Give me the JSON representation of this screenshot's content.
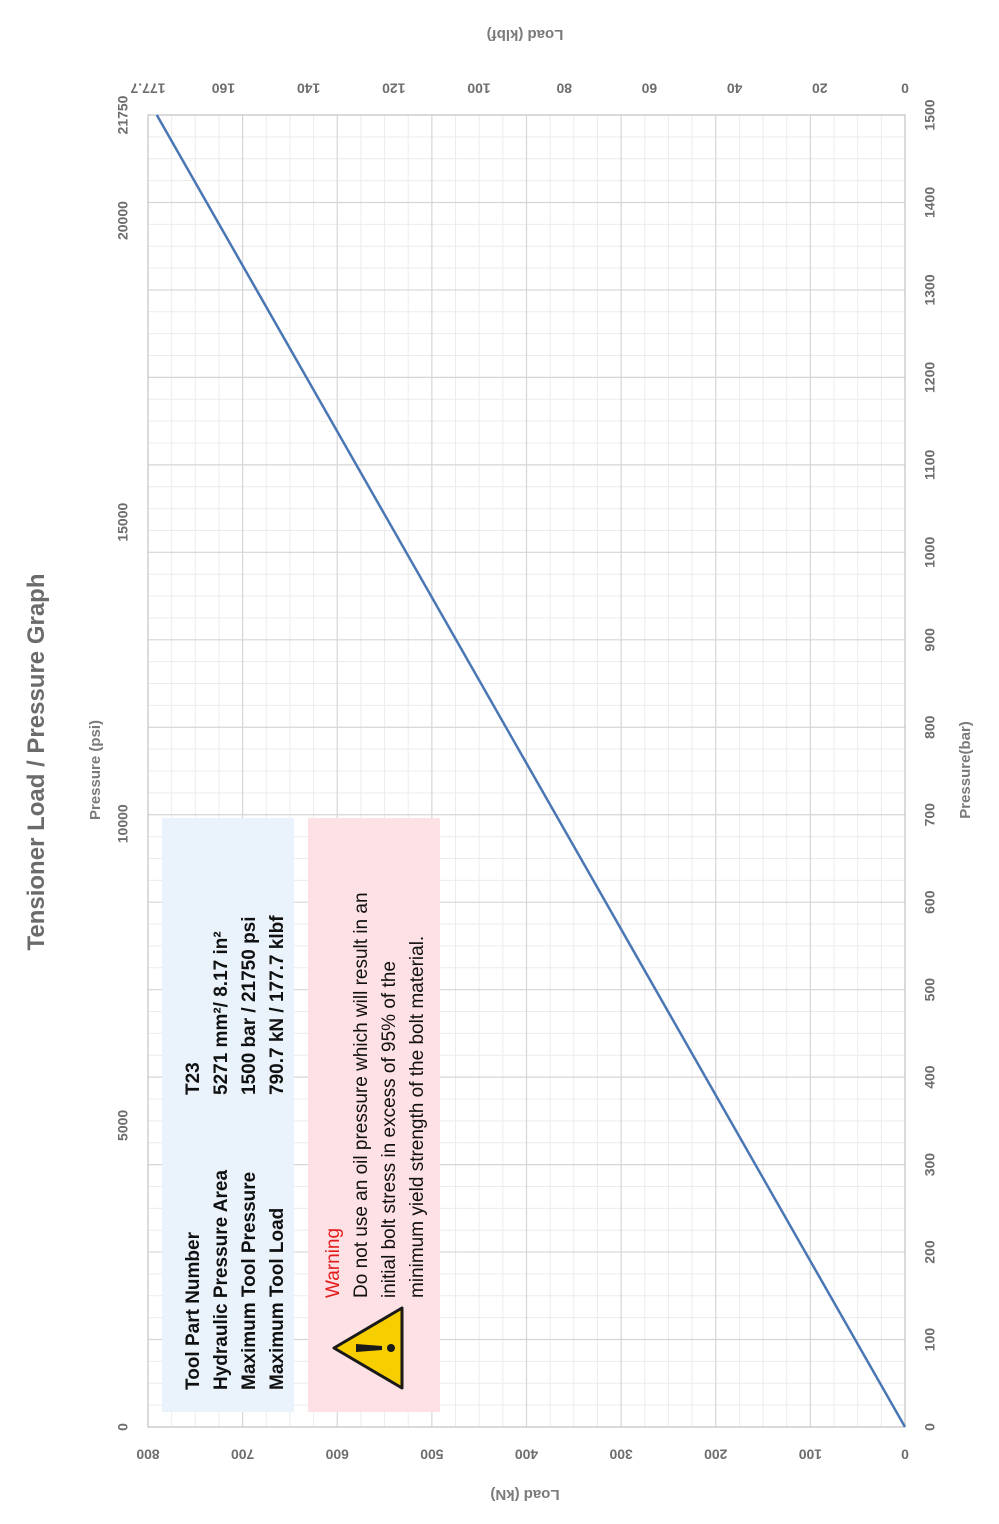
{
  "chart_data": {
    "type": "line",
    "title": "Tensioner Load / Pressure Graph",
    "series": [
      {
        "x": [
          0,
          1500
        ],
        "y": [
          0,
          790.7
        ],
        "color": "#4a76b4"
      }
    ],
    "axes": {
      "bottom": {
        "label": "Pressure(bar)",
        "range": [
          0,
          1500
        ],
        "ticks": [
          "0",
          "100",
          "200",
          "300",
          "400",
          "500",
          "600",
          "700",
          "800",
          "900",
          "1000",
          "1100",
          "1200",
          "1300",
          "1400",
          "1500"
        ]
      },
      "top": {
        "label": "Pressure (psi)",
        "range": [
          0,
          21750
        ],
        "ticks": [
          "0",
          "5000",
          "10000",
          "15000",
          "20000",
          "21750"
        ]
      },
      "left": {
        "label": "Load (kN)",
        "range": [
          0,
          800
        ],
        "ticks": [
          "0",
          "100",
          "200",
          "300",
          "400",
          "500",
          "600",
          "700",
          "800"
        ]
      },
      "right": {
        "label": "Load (klbf)",
        "range": [
          0,
          177.7
        ],
        "ticks": [
          "0",
          "20",
          "40",
          "60",
          "80",
          "100",
          "120",
          "140",
          "160",
          "177.7"
        ]
      }
    },
    "grid": true
  },
  "info_box": {
    "rows": [
      {
        "label": "Tool Part Number",
        "value": "T23"
      },
      {
        "label": "Hydraulic Pressure Area",
        "value": "5271 mm²/ 8.17 in²"
      },
      {
        "label": "Maximum Tool Pressure",
        "value": "1500 bar / 21750 psi"
      },
      {
        "label": "Maximum Tool Load",
        "value": "790.7 kN / 177.7 klbf"
      }
    ]
  },
  "warning": {
    "heading": "Warning",
    "lines": [
      "Do not use an oil pressure which will result in an",
      "initial bolt stress in excess of 95% of the",
      "minimum yield strength of the bolt material."
    ],
    "icon": "warning-triangle-icon"
  },
  "colors": {
    "line": "#4a76b4",
    "grid_major": "#d6d6d6",
    "grid_minor": "#ececec",
    "info_bg": "#eaf3fb",
    "warning_bg": "#fde1e4",
    "warning_icon": "#f7cf00"
  }
}
